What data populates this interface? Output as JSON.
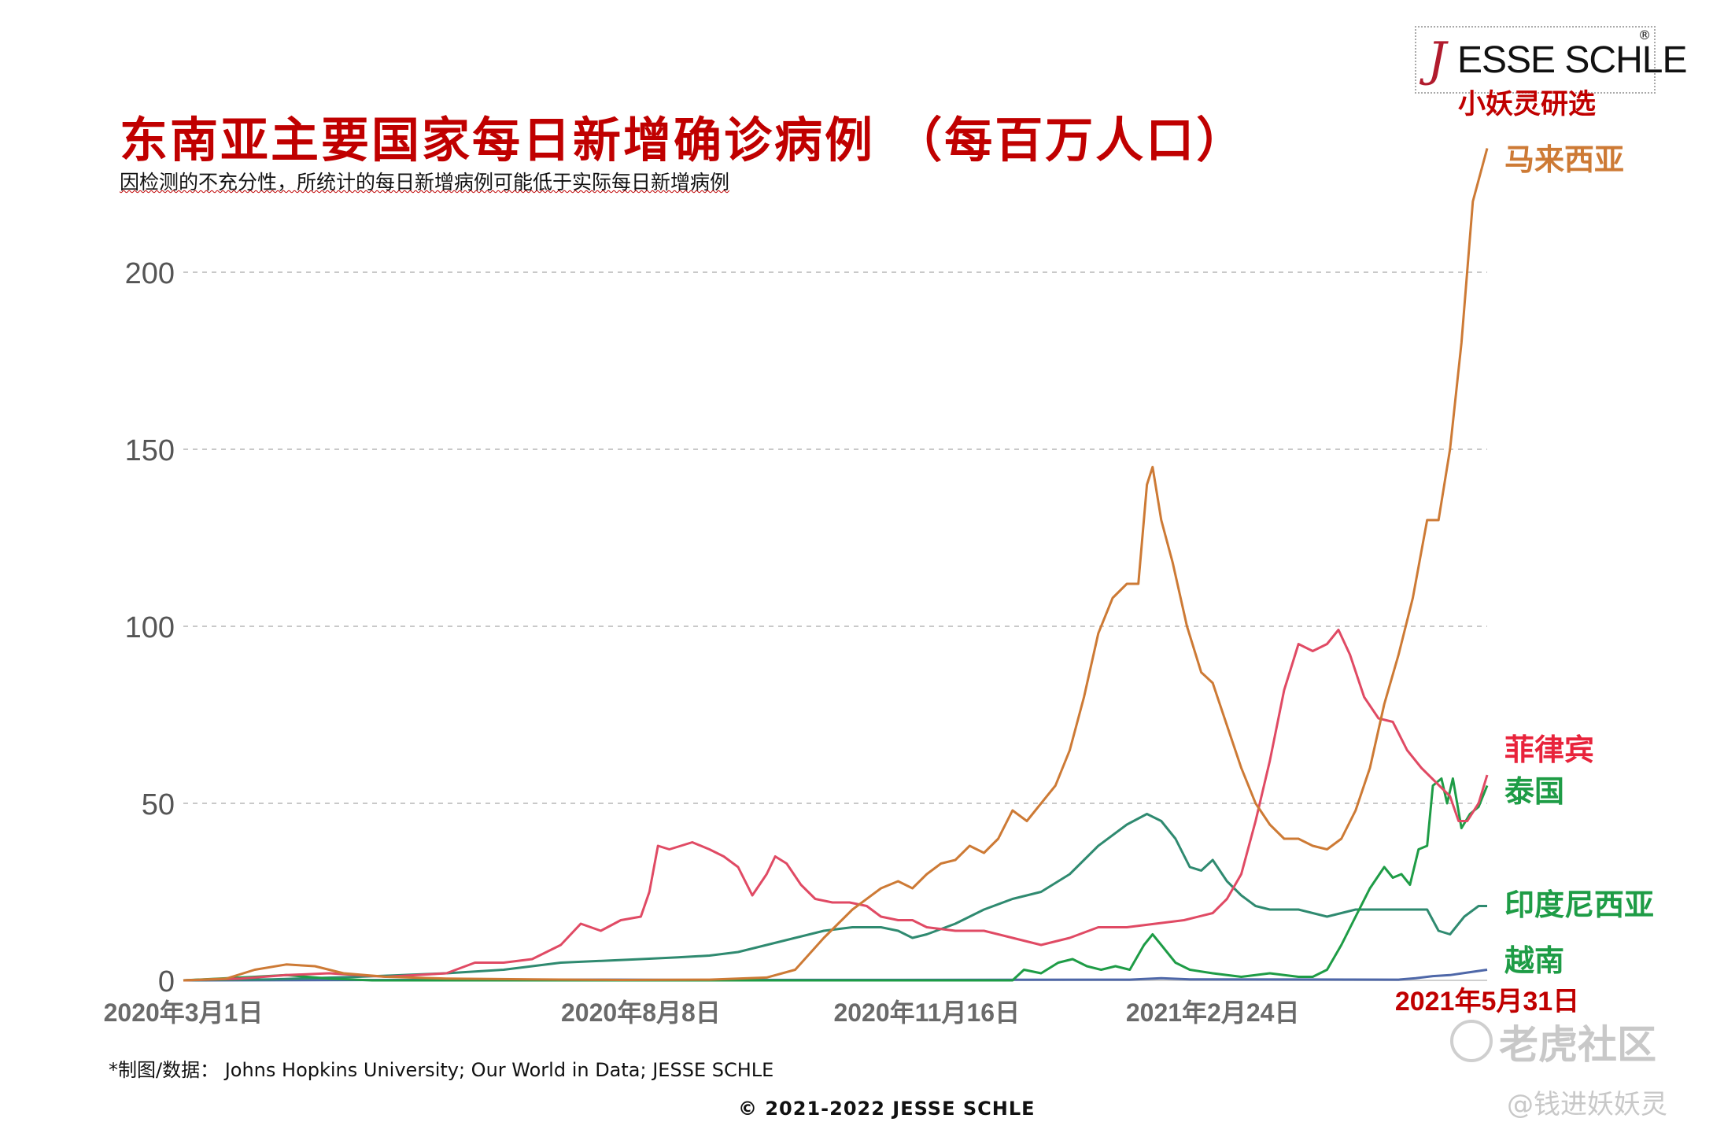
{
  "header": {
    "title": "东南亚主要国家每日新增确诊病例 （每百万人口）",
    "subtitle": "因检测的不充分性，所统计的每日新增病例可能低于实际每日新增病例"
  },
  "logo": {
    "mark": "J",
    "text": "ESSE SCHLE",
    "reg": "®",
    "sub": "小妖灵研选"
  },
  "footer": {
    "source": "*制图/数据： Johns Hopkins University; Our World in Data; JESSE SCHLE",
    "copyright": "© 2021-2022 JESSE SCHLE"
  },
  "watermark": {
    "brand": "老虎社区",
    "handle": "@钱进妖妖灵"
  },
  "chart_data": {
    "type": "line",
    "title": "东南亚主要国家每日新增确诊病例 （每百万人口）",
    "xlabel": "",
    "ylabel": "",
    "x_ticks": [
      "2020年3月1日",
      "2020年8月8日",
      "2020年11月16日",
      "2021年2月24日",
      "2021年5月31日"
    ],
    "y_ticks": [
      0,
      50,
      100,
      150,
      200
    ],
    "ylim": [
      0,
      238
    ],
    "xlim": [
      "2020-03-01",
      "2021-05-31"
    ],
    "grid": true,
    "legend": "right, labels at line ends",
    "series": [
      {
        "name": "马来西亚",
        "color": "#cd7a35",
        "points": [
          [
            "2020-03-01",
            0
          ],
          [
            "2020-03-16",
            0.5
          ],
          [
            "2020-03-26",
            3
          ],
          [
            "2020-04-06",
            4.5
          ],
          [
            "2020-04-16",
            4
          ],
          [
            "2020-04-26",
            2
          ],
          [
            "2020-05-11",
            1
          ],
          [
            "2020-06-01",
            0.5
          ],
          [
            "2020-07-01",
            0.3
          ],
          [
            "2020-08-01",
            0.1
          ],
          [
            "2020-09-01",
            0.2
          ],
          [
            "2020-09-21",
            0.8
          ],
          [
            "2020-10-01",
            3
          ],
          [
            "2020-10-11",
            12
          ],
          [
            "2020-10-21",
            20
          ],
          [
            "2020-10-31",
            26
          ],
          [
            "2020-11-06",
            28
          ],
          [
            "2020-11-11",
            26
          ],
          [
            "2020-11-16",
            30
          ],
          [
            "2020-11-21",
            33
          ],
          [
            "2020-11-26",
            34
          ],
          [
            "2020-12-01",
            38
          ],
          [
            "2020-12-06",
            36
          ],
          [
            "2020-12-11",
            40
          ],
          [
            "2020-12-16",
            48
          ],
          [
            "2020-12-21",
            45
          ],
          [
            "2020-12-26",
            50
          ],
          [
            "2020-12-31",
            55
          ],
          [
            "2021-01-05",
            65
          ],
          [
            "2021-01-10",
            80
          ],
          [
            "2021-01-15",
            98
          ],
          [
            "2021-01-20",
            108
          ],
          [
            "2021-01-25",
            112
          ],
          [
            "2021-01-29",
            112
          ],
          [
            "2021-02-01",
            140
          ],
          [
            "2021-02-03",
            145
          ],
          [
            "2021-02-06",
            130
          ],
          [
            "2021-02-10",
            118
          ],
          [
            "2021-02-15",
            100
          ],
          [
            "2021-02-20",
            87
          ],
          [
            "2021-02-24",
            84
          ],
          [
            "2021-03-01",
            72
          ],
          [
            "2021-03-06",
            60
          ],
          [
            "2021-03-11",
            50
          ],
          [
            "2021-03-16",
            44
          ],
          [
            "2021-03-21",
            40
          ],
          [
            "2021-03-26",
            40
          ],
          [
            "2021-03-31",
            38
          ],
          [
            "2021-04-05",
            37
          ],
          [
            "2021-04-10",
            40
          ],
          [
            "2021-04-15",
            48
          ],
          [
            "2021-04-20",
            60
          ],
          [
            "2021-04-25",
            78
          ],
          [
            "2021-04-30",
            92
          ],
          [
            "2021-05-05",
            108
          ],
          [
            "2021-05-10",
            130
          ],
          [
            "2021-05-14",
            130
          ],
          [
            "2021-05-18",
            150
          ],
          [
            "2021-05-22",
            180
          ],
          [
            "2021-05-26",
            220
          ],
          [
            "2021-05-31",
            235
          ]
        ]
      },
      {
        "name": "菲律宾",
        "color": "#e04a64",
        "points": [
          [
            "2020-03-01",
            0
          ],
          [
            "2020-03-21",
            0.5
          ],
          [
            "2020-04-06",
            1.5
          ],
          [
            "2020-04-21",
            2
          ],
          [
            "2020-05-11",
            1
          ],
          [
            "2020-06-01",
            2
          ],
          [
            "2020-06-11",
            5
          ],
          [
            "2020-06-21",
            5
          ],
          [
            "2020-07-01",
            6
          ],
          [
            "2020-07-11",
            10
          ],
          [
            "2020-07-18",
            16
          ],
          [
            "2020-07-25",
            14
          ],
          [
            "2020-08-01",
            17
          ],
          [
            "2020-08-08",
            18
          ],
          [
            "2020-08-11",
            25
          ],
          [
            "2020-08-14",
            38
          ],
          [
            "2020-08-18",
            37
          ],
          [
            "2020-08-22",
            38
          ],
          [
            "2020-08-26",
            39
          ],
          [
            "2020-09-01",
            37
          ],
          [
            "2020-09-06",
            35
          ],
          [
            "2020-09-11",
            32
          ],
          [
            "2020-09-16",
            24
          ],
          [
            "2020-09-21",
            30
          ],
          [
            "2020-09-24",
            35
          ],
          [
            "2020-09-28",
            33
          ],
          [
            "2020-10-03",
            27
          ],
          [
            "2020-10-08",
            23
          ],
          [
            "2020-10-14",
            22
          ],
          [
            "2020-10-20",
            22
          ],
          [
            "2020-10-26",
            21
          ],
          [
            "2020-10-31",
            18
          ],
          [
            "2020-11-06",
            17
          ],
          [
            "2020-11-11",
            17
          ],
          [
            "2020-11-16",
            15
          ],
          [
            "2020-11-26",
            14
          ],
          [
            "2020-12-06",
            14
          ],
          [
            "2020-12-16",
            12
          ],
          [
            "2020-12-26",
            10
          ],
          [
            "2021-01-05",
            12
          ],
          [
            "2021-01-15",
            15
          ],
          [
            "2021-01-25",
            15
          ],
          [
            "2021-02-04",
            16
          ],
          [
            "2021-02-14",
            17
          ],
          [
            "2021-02-24",
            19
          ],
          [
            "2021-03-01",
            23
          ],
          [
            "2021-03-06",
            30
          ],
          [
            "2021-03-11",
            45
          ],
          [
            "2021-03-16",
            62
          ],
          [
            "2021-03-21",
            82
          ],
          [
            "2021-03-26",
            95
          ],
          [
            "2021-03-31",
            93
          ],
          [
            "2021-04-05",
            95
          ],
          [
            "2021-04-09",
            99
          ],
          [
            "2021-04-13",
            92
          ],
          [
            "2021-04-18",
            80
          ],
          [
            "2021-04-23",
            74
          ],
          [
            "2021-04-28",
            73
          ],
          [
            "2021-05-03",
            65
          ],
          [
            "2021-05-08",
            60
          ],
          [
            "2021-05-13",
            56
          ],
          [
            "2021-05-18",
            52
          ],
          [
            "2021-05-21",
            45
          ],
          [
            "2021-05-24",
            45
          ],
          [
            "2021-05-28",
            50
          ],
          [
            "2021-05-31",
            58
          ]
        ]
      },
      {
        "name": "泰国",
        "color": "#1e9c46",
        "points": [
          [
            "2020-03-01",
            0
          ],
          [
            "2020-03-26",
            1
          ],
          [
            "2020-04-06",
            1.5
          ],
          [
            "2020-04-21",
            0.5
          ],
          [
            "2020-05-06",
            0
          ],
          [
            "2020-12-16",
            0
          ],
          [
            "2020-12-20",
            3
          ],
          [
            "2020-12-26",
            2
          ],
          [
            "2021-01-01",
            5
          ],
          [
            "2021-01-06",
            6
          ],
          [
            "2021-01-11",
            4
          ],
          [
            "2021-01-16",
            3
          ],
          [
            "2021-01-21",
            4
          ],
          [
            "2021-01-26",
            3
          ],
          [
            "2021-01-31",
            10
          ],
          [
            "2021-02-03",
            13
          ],
          [
            "2021-02-06",
            10
          ],
          [
            "2021-02-11",
            5
          ],
          [
            "2021-02-16",
            3
          ],
          [
            "2021-02-24",
            2
          ],
          [
            "2021-03-06",
            1
          ],
          [
            "2021-03-16",
            2
          ],
          [
            "2021-03-26",
            1
          ],
          [
            "2021-03-31",
            1
          ],
          [
            "2021-04-05",
            3
          ],
          [
            "2021-04-10",
            10
          ],
          [
            "2021-04-15",
            18
          ],
          [
            "2021-04-20",
            26
          ],
          [
            "2021-04-25",
            32
          ],
          [
            "2021-04-28",
            29
          ],
          [
            "2021-05-01",
            30
          ],
          [
            "2021-05-04",
            27
          ],
          [
            "2021-05-07",
            37
          ],
          [
            "2021-05-10",
            38
          ],
          [
            "2021-05-12",
            55
          ],
          [
            "2021-05-15",
            57
          ],
          [
            "2021-05-17",
            50
          ],
          [
            "2021-05-19",
            57
          ],
          [
            "2021-05-22",
            43
          ],
          [
            "2021-05-25",
            47
          ],
          [
            "2021-05-28",
            49
          ],
          [
            "2021-05-31",
            55
          ]
        ]
      },
      {
        "name": "印度尼西亚",
        "color": "#2f8a70",
        "points": [
          [
            "2020-03-01",
            0
          ],
          [
            "2020-04-01",
            0.3
          ],
          [
            "2020-05-01",
            1
          ],
          [
            "2020-06-01",
            2
          ],
          [
            "2020-06-21",
            3
          ],
          [
            "2020-07-11",
            5
          ],
          [
            "2020-08-08",
            6
          ],
          [
            "2020-08-21",
            6.5
          ],
          [
            "2020-09-01",
            7
          ],
          [
            "2020-09-11",
            8
          ],
          [
            "2020-09-21",
            10
          ],
          [
            "2020-10-01",
            12
          ],
          [
            "2020-10-11",
            14
          ],
          [
            "2020-10-21",
            15
          ],
          [
            "2020-10-31",
            15
          ],
          [
            "2020-11-06",
            14
          ],
          [
            "2020-11-11",
            12
          ],
          [
            "2020-11-16",
            13
          ],
          [
            "2020-11-26",
            16
          ],
          [
            "2020-12-06",
            20
          ],
          [
            "2020-12-16",
            23
          ],
          [
            "2020-12-26",
            25
          ],
          [
            "2021-01-05",
            30
          ],
          [
            "2021-01-15",
            38
          ],
          [
            "2021-01-25",
            44
          ],
          [
            "2021-02-01",
            47
          ],
          [
            "2021-02-06",
            45
          ],
          [
            "2021-02-11",
            40
          ],
          [
            "2021-02-16",
            32
          ],
          [
            "2021-02-20",
            31
          ],
          [
            "2021-02-24",
            34
          ],
          [
            "2021-03-01",
            28
          ],
          [
            "2021-03-06",
            24
          ],
          [
            "2021-03-11",
            21
          ],
          [
            "2021-03-16",
            20
          ],
          [
            "2021-03-26",
            20
          ],
          [
            "2021-04-05",
            18
          ],
          [
            "2021-04-15",
            20
          ],
          [
            "2021-04-25",
            20
          ],
          [
            "2021-05-05",
            20
          ],
          [
            "2021-05-10",
            20
          ],
          [
            "2021-05-14",
            14
          ],
          [
            "2021-05-18",
            13
          ],
          [
            "2021-05-23",
            18
          ],
          [
            "2021-05-28",
            21
          ],
          [
            "2021-05-31",
            21
          ]
        ]
      },
      {
        "name": "越南",
        "color": "#4e67a8",
        "points": [
          [
            "2020-03-01",
            0
          ],
          [
            "2020-08-01",
            0.2
          ],
          [
            "2020-09-01",
            0.1
          ],
          [
            "2021-01-26",
            0.2
          ],
          [
            "2021-02-06",
            0.6
          ],
          [
            "2021-02-16",
            0.3
          ],
          [
            "2021-04-30",
            0.2
          ],
          [
            "2021-05-06",
            0.6
          ],
          [
            "2021-05-12",
            1.2
          ],
          [
            "2021-05-18",
            1.5
          ],
          [
            "2021-05-24",
            2.2
          ],
          [
            "2021-05-31",
            3
          ]
        ]
      }
    ]
  }
}
